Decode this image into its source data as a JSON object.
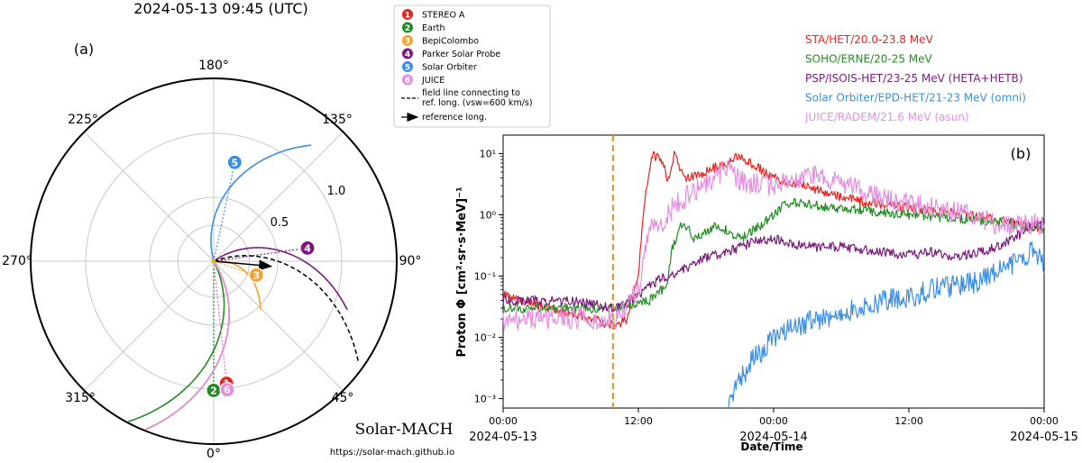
{
  "chart_data": [
    {
      "type": "polar",
      "panel_label": "(a)",
      "title": "2024-05-13 09:45 (UTC)",
      "angle_labels": [
        "180°",
        "135°",
        "90°",
        "45°",
        "0°",
        "315°",
        "270°",
        "225°"
      ],
      "radial_labels": [
        "0.5",
        "1.0"
      ],
      "legend": [
        {
          "num": "1",
          "name": "STEREO A",
          "color": "#e8231f"
        },
        {
          "num": "2",
          "name": "Earth",
          "color": "#228b22"
        },
        {
          "num": "3",
          "name": "BepiColombo",
          "color": "#f0a430"
        },
        {
          "num": "4",
          "name": "Parker Solar Probe",
          "color": "#7b1a7e"
        },
        {
          "num": "5",
          "name": "Solar Orbiter",
          "color": "#3b8ee8"
        },
        {
          "num": "6",
          "name": "JUICE",
          "color": "#e48fe0"
        }
      ],
      "legend_fieldline": "field line connecting to",
      "legend_fieldline2": "ref. long. (vsw=600 km/s)",
      "legend_reference": "reference long.",
      "spacecraft": [
        {
          "num": "1",
          "r": 0.96,
          "lon": 6
        },
        {
          "num": "2",
          "r": 1.01,
          "lon": 0
        },
        {
          "num": "3",
          "r": 0.35,
          "lon": 72
        },
        {
          "num": "4",
          "r": 0.74,
          "lon": 98
        },
        {
          "num": "5",
          "r": 0.79,
          "lon": 168
        },
        {
          "num": "6",
          "r": 1.01,
          "lon": 6
        }
      ],
      "reference_longitude": 85,
      "watermark": "Solar-MACH",
      "watermark_url": "https://solar-mach.github.io"
    },
    {
      "type": "line",
      "panel_label": "(b)",
      "ylabel": "Proton Φ [cm²·sr·s·MeV]⁻¹",
      "xlabel": "Date/Time",
      "yscale": "log",
      "ylim": [
        0.0007,
        20
      ],
      "y_tick_labels": [
        "10¹",
        "10⁰",
        "10⁻¹",
        "10⁻²",
        "10⁻³"
      ],
      "x_tick_labels": [
        "00:00",
        "12:00",
        "00:00",
        "12:00",
        "00:00"
      ],
      "x_date_labels": [
        "2024-05-13",
        "2024-05-14",
        "2024-05-15"
      ],
      "x_range_hours": [
        0,
        48
      ],
      "event_time_hours": 9.75,
      "series": [
        {
          "name": "STA/HET/20.0-23.8 MeV",
          "color": "#e8231f",
          "points": [
            [
              0,
              0.05
            ],
            [
              4,
              0.03
            ],
            [
              8,
              0.02
            ],
            [
              10,
              0.015
            ],
            [
              11,
              0.02
            ],
            [
              12,
              0.1
            ],
            [
              12.5,
              1.5
            ],
            [
              13.2,
              10
            ],
            [
              14.2,
              7
            ],
            [
              14.6,
              3.5
            ],
            [
              15.2,
              10
            ],
            [
              16,
              4
            ],
            [
              18,
              5
            ],
            [
              21,
              9
            ],
            [
              24,
              4
            ],
            [
              28,
              2.5
            ],
            [
              32,
              1.6
            ],
            [
              36,
              1.3
            ],
            [
              40,
              1.1
            ],
            [
              44,
              0.8
            ],
            [
              48,
              0.6
            ]
          ]
        },
        {
          "name": "SOHO/ERNE/20-25 MeV",
          "color": "#228b22",
          "points": [
            [
              0,
              0.03
            ],
            [
              6,
              0.03
            ],
            [
              10,
              0.03
            ],
            [
              13,
              0.04
            ],
            [
              14.5,
              0.07
            ],
            [
              15,
              0.3
            ],
            [
              16,
              0.8
            ],
            [
              17,
              0.4
            ],
            [
              19,
              0.7
            ],
            [
              21,
              0.4
            ],
            [
              23,
              0.7
            ],
            [
              24,
              1.0
            ],
            [
              25,
              1.6
            ],
            [
              28,
              1.4
            ],
            [
              32,
              1.2
            ],
            [
              36,
              1.0
            ],
            [
              40,
              0.9
            ],
            [
              44,
              0.75
            ],
            [
              48,
              0.6
            ]
          ]
        },
        {
          "name": "PSP/ISOIS-HET/23-25 MeV (HETA+HETB)",
          "color": "#7b1a7e",
          "points": [
            [
              0,
              0.04
            ],
            [
              6,
              0.04
            ],
            [
              10,
              0.03
            ],
            [
              12,
              0.05
            ],
            [
              14,
              0.09
            ],
            [
              16,
              0.13
            ],
            [
              18,
              0.2
            ],
            [
              20,
              0.25
            ],
            [
              22,
              0.35
            ],
            [
              24,
              0.4
            ],
            [
              27,
              0.3
            ],
            [
              30,
              0.3
            ],
            [
              33,
              0.25
            ],
            [
              36,
              0.22
            ],
            [
              38,
              0.25
            ],
            [
              40,
              0.2
            ],
            [
              44,
              0.3
            ],
            [
              46,
              0.5
            ],
            [
              48,
              0.8
            ]
          ]
        },
        {
          "name": "Solar Orbiter/EPD-HET/21-23 MeV (omni)",
          "color": "#3b8ee8",
          "points": [
            [
              20,
              0.001
            ],
            [
              21,
              0.002
            ],
            [
              22,
              0.004
            ],
            [
              23,
              0.006
            ],
            [
              24,
              0.01
            ],
            [
              26,
              0.015
            ],
            [
              28,
              0.02
            ],
            [
              30,
              0.025
            ],
            [
              32,
              0.03
            ],
            [
              34,
              0.04
            ],
            [
              36,
              0.045
            ],
            [
              38,
              0.06
            ],
            [
              40,
              0.07
            ],
            [
              42,
              0.08
            ],
            [
              44,
              0.12
            ],
            [
              46,
              0.2
            ],
            [
              47,
              0.25
            ],
            [
              48,
              0.15
            ]
          ]
        },
        {
          "name": "JUICE/RADEM/21.6 MeV (asun)",
          "color": "#e48fe0",
          "points": [
            [
              0,
              0.02
            ],
            [
              6,
              0.02
            ],
            [
              10,
              0.02
            ],
            [
              12,
              0.06
            ],
            [
              13,
              0.7
            ],
            [
              14,
              0.7
            ],
            [
              15,
              1.3
            ],
            [
              17,
              2.5
            ],
            [
              19,
              4
            ],
            [
              20,
              6
            ],
            [
              21,
              3.5
            ],
            [
              23,
              3
            ],
            [
              26,
              3.5
            ],
            [
              28,
              4.5
            ],
            [
              32,
              2.5
            ],
            [
              36,
              1.5
            ],
            [
              40,
              1.1
            ],
            [
              44,
              0.7
            ],
            [
              48,
              0.7
            ]
          ]
        }
      ]
    }
  ]
}
